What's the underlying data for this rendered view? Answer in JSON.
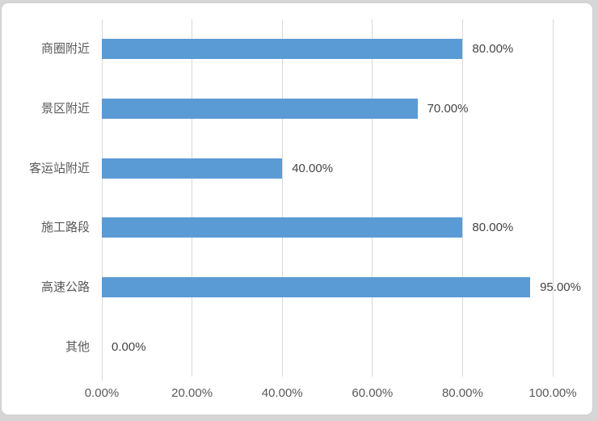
{
  "colors": {
    "bar": "#5B9BD5",
    "gridline": "#D9D9D9",
    "axis_line": "#D9D9D9",
    "axis_text": "#595959",
    "data_label_text": "#444444",
    "panel_bg": "#FFFFFF",
    "panel_border": "#D0D0D0",
    "outer_bg": "#D6D6D6"
  },
  "chart_data": {
    "type": "bar",
    "orientation": "horizontal",
    "title": "",
    "categories": [
      "商圈附近",
      "景区附近",
      "客运站附近",
      "施工路段",
      "高速公路",
      "其他"
    ],
    "values": [
      80,
      70,
      40,
      80,
      95,
      0
    ],
    "data_labels": [
      "80.00%",
      "70.00%",
      "40.00%",
      "80.00%",
      "95.00%",
      "0.00%"
    ],
    "x_ticks": [
      {
        "value": 0,
        "label": "0.00%"
      },
      {
        "value": 20,
        "label": "20.00%"
      },
      {
        "value": 40,
        "label": "40.00%"
      },
      {
        "value": 60,
        "label": "60.00%"
      },
      {
        "value": 80,
        "label": "80.00%"
      },
      {
        "value": 100,
        "label": "100.00%"
      }
    ],
    "xlim": [
      0,
      100
    ],
    "grid": true,
    "legend": false,
    "xlabel": "",
    "ylabel": ""
  }
}
